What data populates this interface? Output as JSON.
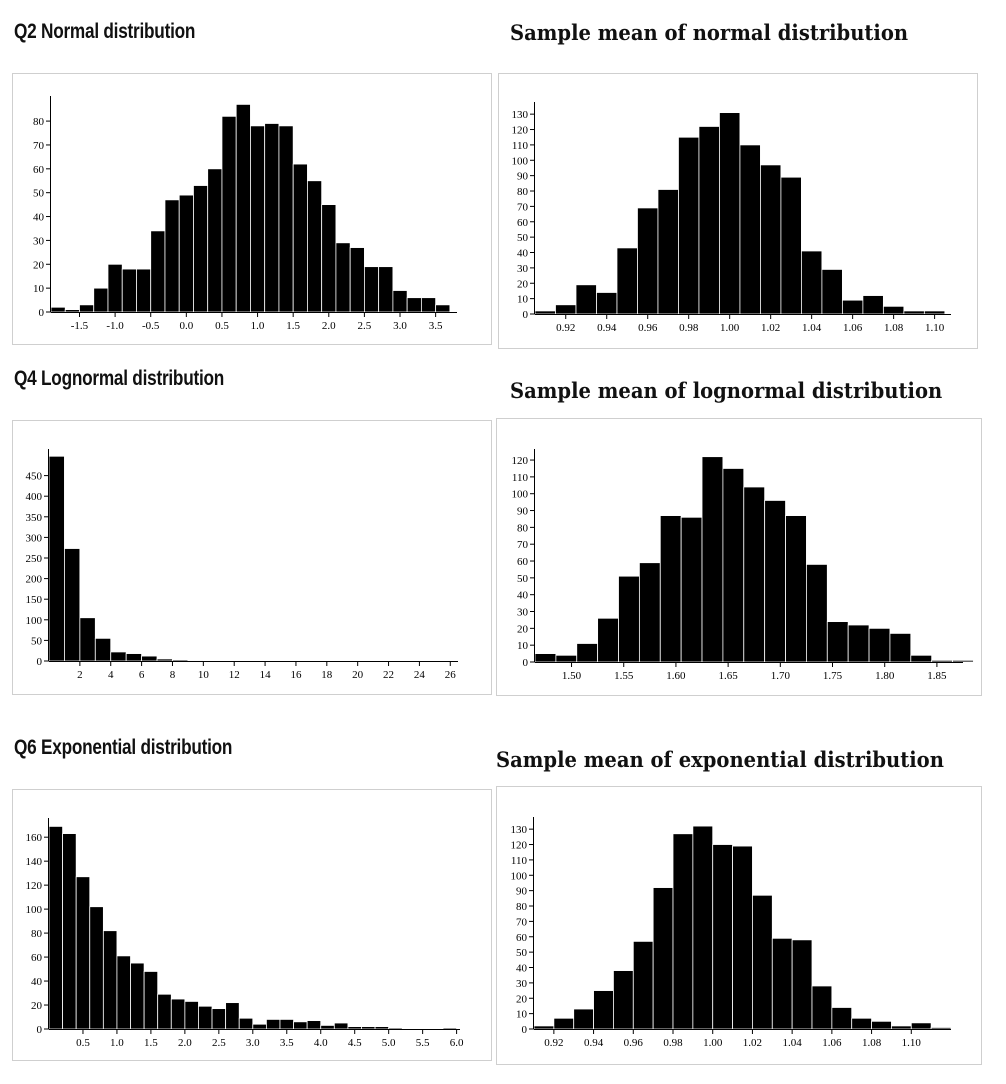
{
  "titles": {
    "c1": "Q2 Normal distribution",
    "c2": "Sample mean of normal distribution",
    "c3": "Q4 Lognormal distribution",
    "c4": "Sample mean of lognormal distribution",
    "c5": "Q6 Exponential distribution",
    "c6": "Sample mean of exponential distribution"
  },
  "chart_data": [
    {
      "id": "c1",
      "type": "bar",
      "title": "Q2 Normal distribution",
      "bin_start": -1.9,
      "bin_width": 0.2,
      "values": [
        2,
        1,
        3,
        10,
        20,
        18,
        18,
        34,
        47,
        49,
        53,
        60,
        82,
        87,
        78,
        79,
        78,
        62,
        55,
        45,
        29,
        27,
        19,
        19,
        9,
        6,
        6,
        3
      ],
      "xlim": [
        -1.9,
        3.8
      ],
      "ylim": [
        0,
        88
      ],
      "xticks": [
        -1.5,
        -1.0,
        -0.5,
        0.0,
        0.5,
        1.0,
        1.5,
        2.0,
        2.5,
        3.0,
        3.5
      ],
      "xtick_labels": [
        "-1.5",
        "-1.0",
        "-0.5",
        "0.0",
        "0.5",
        "1.0",
        "1.5",
        "2.0",
        "2.5",
        "3.0",
        "3.5"
      ],
      "yticks": [
        0,
        10,
        20,
        30,
        40,
        50,
        60,
        70,
        80
      ],
      "ytick_labels": [
        "0",
        "10",
        "20",
        "30",
        "40",
        "50",
        "60",
        "70",
        "80"
      ],
      "xlabel": "",
      "ylabel": "",
      "grid": false
    },
    {
      "id": "c2",
      "type": "bar",
      "title": "Sample mean of normal distribution",
      "bin_start": 0.905,
      "bin_width": 0.01,
      "values": [
        2,
        6,
        19,
        14,
        43,
        69,
        81,
        115,
        122,
        131,
        110,
        97,
        89,
        41,
        29,
        9,
        12,
        5,
        2,
        2
      ],
      "xlim": [
        0.905,
        1.108
      ],
      "ylim": [
        0,
        134
      ],
      "xticks": [
        0.92,
        0.94,
        0.96,
        0.98,
        1.0,
        1.02,
        1.04,
        1.06,
        1.08,
        1.1
      ],
      "xtick_labels": [
        "0.92",
        "0.94",
        "0.96",
        "0.98",
        "1.00",
        "1.02",
        "1.04",
        "1.06",
        "1.08",
        "1.10"
      ],
      "yticks": [
        0,
        10,
        20,
        30,
        40,
        50,
        60,
        70,
        80,
        90,
        100,
        110,
        120,
        130
      ],
      "ytick_labels": [
        "0",
        "10",
        "20",
        "30",
        "40",
        "50",
        "60",
        "70",
        "80",
        "90",
        "100",
        "110",
        "120",
        "130"
      ],
      "xlabel": "",
      "ylabel": "",
      "grid": false
    },
    {
      "id": "c3",
      "type": "bar",
      "title": "Q4 Lognormal distribution",
      "bin_start": 0,
      "bin_width": 1,
      "values": [
        497,
        273,
        105,
        55,
        22,
        18,
        12,
        5,
        3,
        2,
        1,
        0,
        1,
        0,
        0,
        0,
        1,
        0,
        0,
        0,
        0,
        0,
        1,
        0,
        0,
        0
      ],
      "xlim": [
        0,
        26.5
      ],
      "ylim": [
        0,
        500
      ],
      "xticks": [
        2,
        4,
        6,
        8,
        10,
        12,
        14,
        16,
        18,
        20,
        22,
        24,
        26
      ],
      "xtick_labels": [
        "2",
        "4",
        "6",
        "8",
        "10",
        "12",
        "14",
        "16",
        "18",
        "20",
        "22",
        "24",
        "26"
      ],
      "yticks": [
        0,
        50,
        100,
        150,
        200,
        250,
        300,
        350,
        400,
        450
      ],
      "ytick_labels": [
        "0",
        "50",
        "100",
        "150",
        "200",
        "250",
        "300",
        "350",
        "400",
        "450"
      ],
      "xlabel": "",
      "ylabel": "",
      "grid": false
    },
    {
      "id": "c4",
      "type": "bar",
      "title": "Sample mean of lognormal distribution",
      "bin_start": 1.465,
      "bin_width": 0.02,
      "values": [
        5,
        4,
        11,
        26,
        51,
        59,
        87,
        86,
        122,
        115,
        104,
        96,
        87,
        58,
        24,
        22,
        20,
        17,
        4,
        1,
        1
      ],
      "xlim": [
        1.465,
        1.875
      ],
      "ylim": [
        0,
        123
      ],
      "xticks": [
        1.5,
        1.55,
        1.6,
        1.65,
        1.7,
        1.75,
        1.8,
        1.85
      ],
      "xtick_labels": [
        "1.50",
        "1.55",
        "1.60",
        "1.65",
        "1.70",
        "1.75",
        "1.80",
        "1.85"
      ],
      "yticks": [
        0,
        10,
        20,
        30,
        40,
        50,
        60,
        70,
        80,
        90,
        100,
        110,
        120
      ],
      "ytick_labels": [
        "0",
        "10",
        "20",
        "30",
        "40",
        "50",
        "60",
        "70",
        "80",
        "90",
        "100",
        "110",
        "120"
      ],
      "xlabel": "",
      "ylabel": "",
      "grid": false
    },
    {
      "id": "c5",
      "type": "bar",
      "title": "Q6 Exponential distribution",
      "bin_start": 0,
      "bin_width": 0.2,
      "values": [
        169,
        163,
        127,
        102,
        82,
        61,
        55,
        48,
        29,
        25,
        23,
        19,
        17,
        22,
        9,
        4,
        8,
        8,
        6,
        7,
        3,
        5,
        2,
        2,
        2,
        1,
        0,
        0,
        0,
        1
      ],
      "xlim": [
        0,
        6.05
      ],
      "ylim": [
        0,
        171
      ],
      "xticks": [
        0.5,
        1.0,
        1.5,
        2.0,
        2.5,
        3.0,
        3.5,
        4.0,
        4.5,
        5.0,
        5.5,
        6.0
      ],
      "xtick_labels": [
        "0.5",
        "1.0",
        "1.5",
        "2.0",
        "2.5",
        "3.0",
        "3.5",
        "4.0",
        "4.5",
        "5.0",
        "5.5",
        "6.0"
      ],
      "yticks": [
        0,
        20,
        40,
        60,
        80,
        100,
        120,
        140,
        160
      ],
      "ytick_labels": [
        "0",
        "20",
        "40",
        "60",
        "80",
        "100",
        "120",
        "140",
        "160"
      ],
      "xlabel": "",
      "ylabel": "",
      "grid": false
    },
    {
      "id": "c6",
      "type": "bar",
      "title": "Sample mean of exponential distribution",
      "bin_start": 0.91,
      "bin_width": 0.01,
      "values": [
        2,
        7,
        13,
        25,
        38,
        57,
        92,
        127,
        132,
        120,
        119,
        87,
        59,
        58,
        28,
        14,
        7,
        5,
        2,
        4,
        1
      ],
      "xlim": [
        0.91,
        1.12
      ],
      "ylim": [
        0,
        134
      ],
      "xticks": [
        0.92,
        0.94,
        0.96,
        0.98,
        1.0,
        1.02,
        1.04,
        1.06,
        1.08,
        1.1
      ],
      "xtick_labels": [
        "0.92",
        "0.94",
        "0.96",
        "0.98",
        "1.00",
        "1.02",
        "1.04",
        "1.06",
        "1.08",
        "1.10"
      ],
      "yticks": [
        0,
        10,
        20,
        30,
        40,
        50,
        60,
        70,
        80,
        90,
        100,
        110,
        120,
        130
      ],
      "ytick_labels": [
        "0",
        "10",
        "20",
        "30",
        "40",
        "50",
        "60",
        "70",
        "80",
        "90",
        "100",
        "110",
        "120",
        "130"
      ],
      "xlabel": "",
      "ylabel": "",
      "grid": false
    }
  ]
}
